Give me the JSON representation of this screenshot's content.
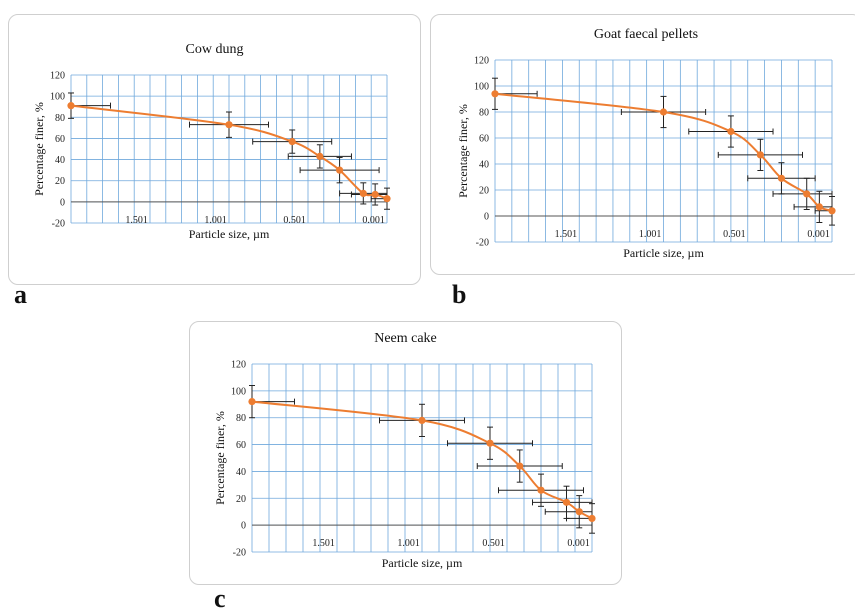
{
  "panel_letters": [
    "a",
    "b",
    "c"
  ],
  "colors": {
    "series": "#ED7D31",
    "grid": "#6FA8DC",
    "error_bar": "#222222"
  },
  "chart_data": [
    {
      "type": "line",
      "title": "Cow dung",
      "xlabel": "Particle size, µm",
      "ylabel": "Percentage finer, %",
      "x_reversed": true,
      "xlim": [
        2.0,
        0.0
      ],
      "x_tick_labels": [
        "1.501",
        "1.001",
        "0.501",
        "0.001"
      ],
      "x_tick_values": [
        1.501,
        1.001,
        0.501,
        0.001
      ],
      "y_ticks": [
        -20,
        0,
        20,
        40,
        60,
        80,
        100,
        120
      ],
      "ylim": [
        -20,
        120
      ],
      "grid": true,
      "series": [
        {
          "x": [
            2.0,
            1.0,
            0.6,
            0.425,
            0.3,
            0.15,
            0.075,
            0.0
          ],
          "y": [
            91,
            73,
            57,
            43,
            30,
            8,
            7,
            3
          ],
          "x_err": [
            0.25,
            0.25,
            0.25,
            0.2,
            0.25,
            0.15,
            0.15,
            0.1
          ],
          "y_err": [
            12,
            12,
            11,
            11,
            12,
            10,
            10,
            10
          ]
        }
      ]
    },
    {
      "type": "line",
      "title": "Goat faecal pellets",
      "xlabel": "Particle size, µm",
      "ylabel": "Percentage finer, %",
      "x_reversed": true,
      "xlim": [
        2.0,
        0.0
      ],
      "x_tick_labels": [
        "1.501",
        "1.001",
        "0.501",
        "0.001"
      ],
      "x_tick_values": [
        1.501,
        1.001,
        0.501,
        0.001
      ],
      "y_ticks": [
        -20,
        0,
        20,
        40,
        60,
        80,
        100,
        120
      ],
      "ylim": [
        -20,
        120
      ],
      "grid": true,
      "series": [
        {
          "x": [
            2.0,
            1.0,
            0.6,
            0.425,
            0.3,
            0.15,
            0.075,
            0.0
          ],
          "y": [
            94,
            80,
            65,
            47,
            29,
            17,
            7,
            4
          ],
          "x_err": [
            0.25,
            0.25,
            0.25,
            0.25,
            0.2,
            0.2,
            0.15,
            0.1
          ],
          "y_err": [
            12,
            12,
            12,
            12,
            12,
            12,
            12,
            11
          ]
        }
      ]
    },
    {
      "type": "line",
      "title": "Neem cake",
      "xlabel": "Particle size, µm",
      "ylabel": "Percentage finer, %",
      "x_reversed": true,
      "xlim": [
        2.0,
        0.0
      ],
      "x_tick_labels": [
        "1.501",
        "1.001",
        "0.501",
        "0.001"
      ],
      "x_tick_values": [
        1.501,
        1.001,
        0.501,
        0.001
      ],
      "y_ticks": [
        -20,
        0,
        20,
        40,
        60,
        80,
        100,
        120
      ],
      "ylim": [
        -20,
        120
      ],
      "grid": true,
      "series": [
        {
          "x": [
            2.0,
            1.0,
            0.6,
            0.425,
            0.3,
            0.15,
            0.075,
            0.0
          ],
          "y": [
            92,
            78,
            61,
            44,
            26,
            17,
            10,
            5
          ],
          "x_err": [
            0.25,
            0.25,
            0.25,
            0.25,
            0.25,
            0.2,
            0.2,
            0.15
          ],
          "y_err": [
            12,
            12,
            12,
            12,
            12,
            12,
            12,
            11
          ]
        }
      ]
    }
  ]
}
